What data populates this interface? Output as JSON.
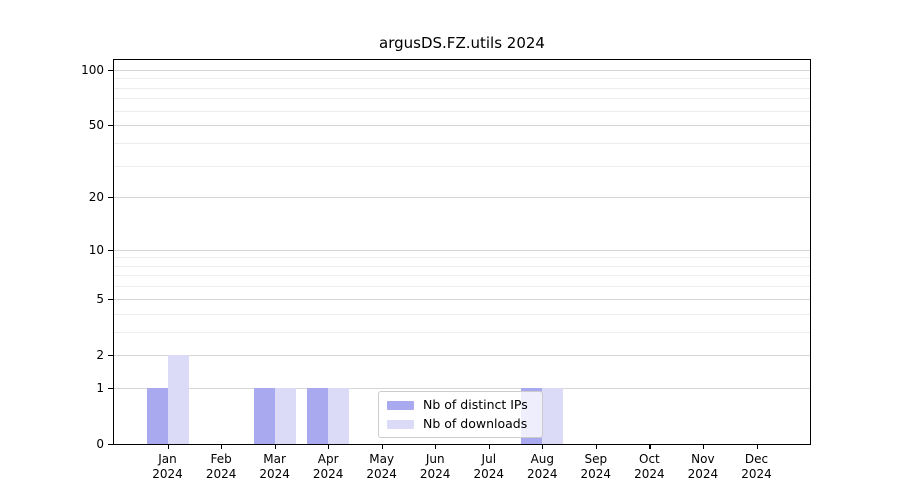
{
  "title": "argusDS.FZ.utils 2024",
  "chart_data": {
    "type": "bar",
    "title": "argusDS.FZ.utils 2024",
    "categories": [
      "Jan",
      "Feb",
      "Mar",
      "Apr",
      "May",
      "Jun",
      "Jul",
      "Aug",
      "Sep",
      "Oct",
      "Nov",
      "Dec"
    ],
    "year_label": "2024",
    "series": [
      {
        "name": "Nb of distinct IPs",
        "color": "#a9a9ef",
        "values": [
          1,
          0,
          1,
          1,
          0,
          0,
          0,
          1,
          0,
          0,
          0,
          0
        ]
      },
      {
        "name": "Nb of downloads",
        "color": "#dbdbf8",
        "values": [
          2,
          0,
          1,
          1,
          0,
          0,
          0,
          1,
          0,
          0,
          0,
          0
        ]
      }
    ],
    "xlabel": "",
    "ylabel": "",
    "y_axis": {
      "scale": "log1p",
      "major_ticks": [
        0,
        1,
        2,
        5,
        10,
        20,
        50,
        100
      ],
      "tick_labels": [
        "0",
        "1",
        "2",
        "5",
        "10",
        "20",
        "50",
        "100"
      ],
      "minor_ticks": [
        3,
        4,
        6,
        7,
        8,
        9,
        30,
        40,
        60,
        70,
        80,
        90
      ],
      "ylim": [
        0,
        113
      ]
    },
    "grid": "horizontal",
    "legend_position": "lower-center-inside"
  },
  "colors": {
    "bar_distinct_ips": "#a9a9ef",
    "bar_downloads": "#dbdbf8",
    "grid_major": "#d6d6d6",
    "grid_minor": "#ededed",
    "spine": "#000000",
    "legend_border": "#cccccc"
  }
}
